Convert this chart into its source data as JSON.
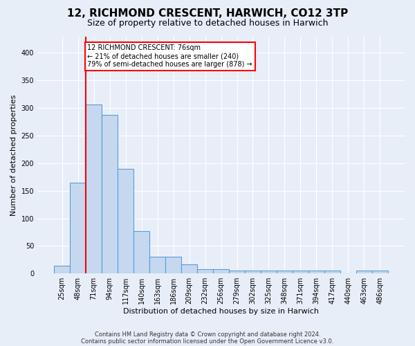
{
  "title1": "12, RICHMOND CRESCENT, HARWICH, CO12 3TP",
  "title2": "Size of property relative to detached houses in Harwich",
  "xlabel": "Distribution of detached houses by size in Harwich",
  "ylabel": "Number of detached properties",
  "categories": [
    "25sqm",
    "48sqm",
    "71sqm",
    "94sqm",
    "117sqm",
    "140sqm",
    "163sqm",
    "186sqm",
    "209sqm",
    "232sqm",
    "256sqm",
    "279sqm",
    "302sqm",
    "325sqm",
    "348sqm",
    "371sqm",
    "394sqm",
    "417sqm",
    "440sqm",
    "463sqm",
    "486sqm"
  ],
  "values": [
    14,
    165,
    307,
    288,
    190,
    77,
    30,
    30,
    17,
    8,
    8,
    5,
    5,
    5,
    5,
    5,
    5,
    5,
    0,
    5,
    5
  ],
  "bar_color": "#c5d8f0",
  "bar_edge_color": "#5b9bd5",
  "property_line_x": 2,
  "property_line_color": "red",
  "annotation_text": "12 RICHMOND CRESCENT: 76sqm\n← 21% of detached houses are smaller (240)\n79% of semi-detached houses are larger (878) →",
  "annotation_box_color": "white",
  "annotation_box_edge_color": "red",
  "footer1": "Contains HM Land Registry data © Crown copyright and database right 2024.",
  "footer2": "Contains public sector information licensed under the Open Government Licence v3.0.",
  "ylim": [
    0,
    430
  ],
  "background_color": "#e8eef8",
  "grid_color": "white",
  "title1_fontsize": 11,
  "title2_fontsize": 9,
  "ylabel_fontsize": 8,
  "xlabel_fontsize": 8,
  "tick_fontsize": 7,
  "annotation_fontsize": 7,
  "footer_fontsize": 6
}
